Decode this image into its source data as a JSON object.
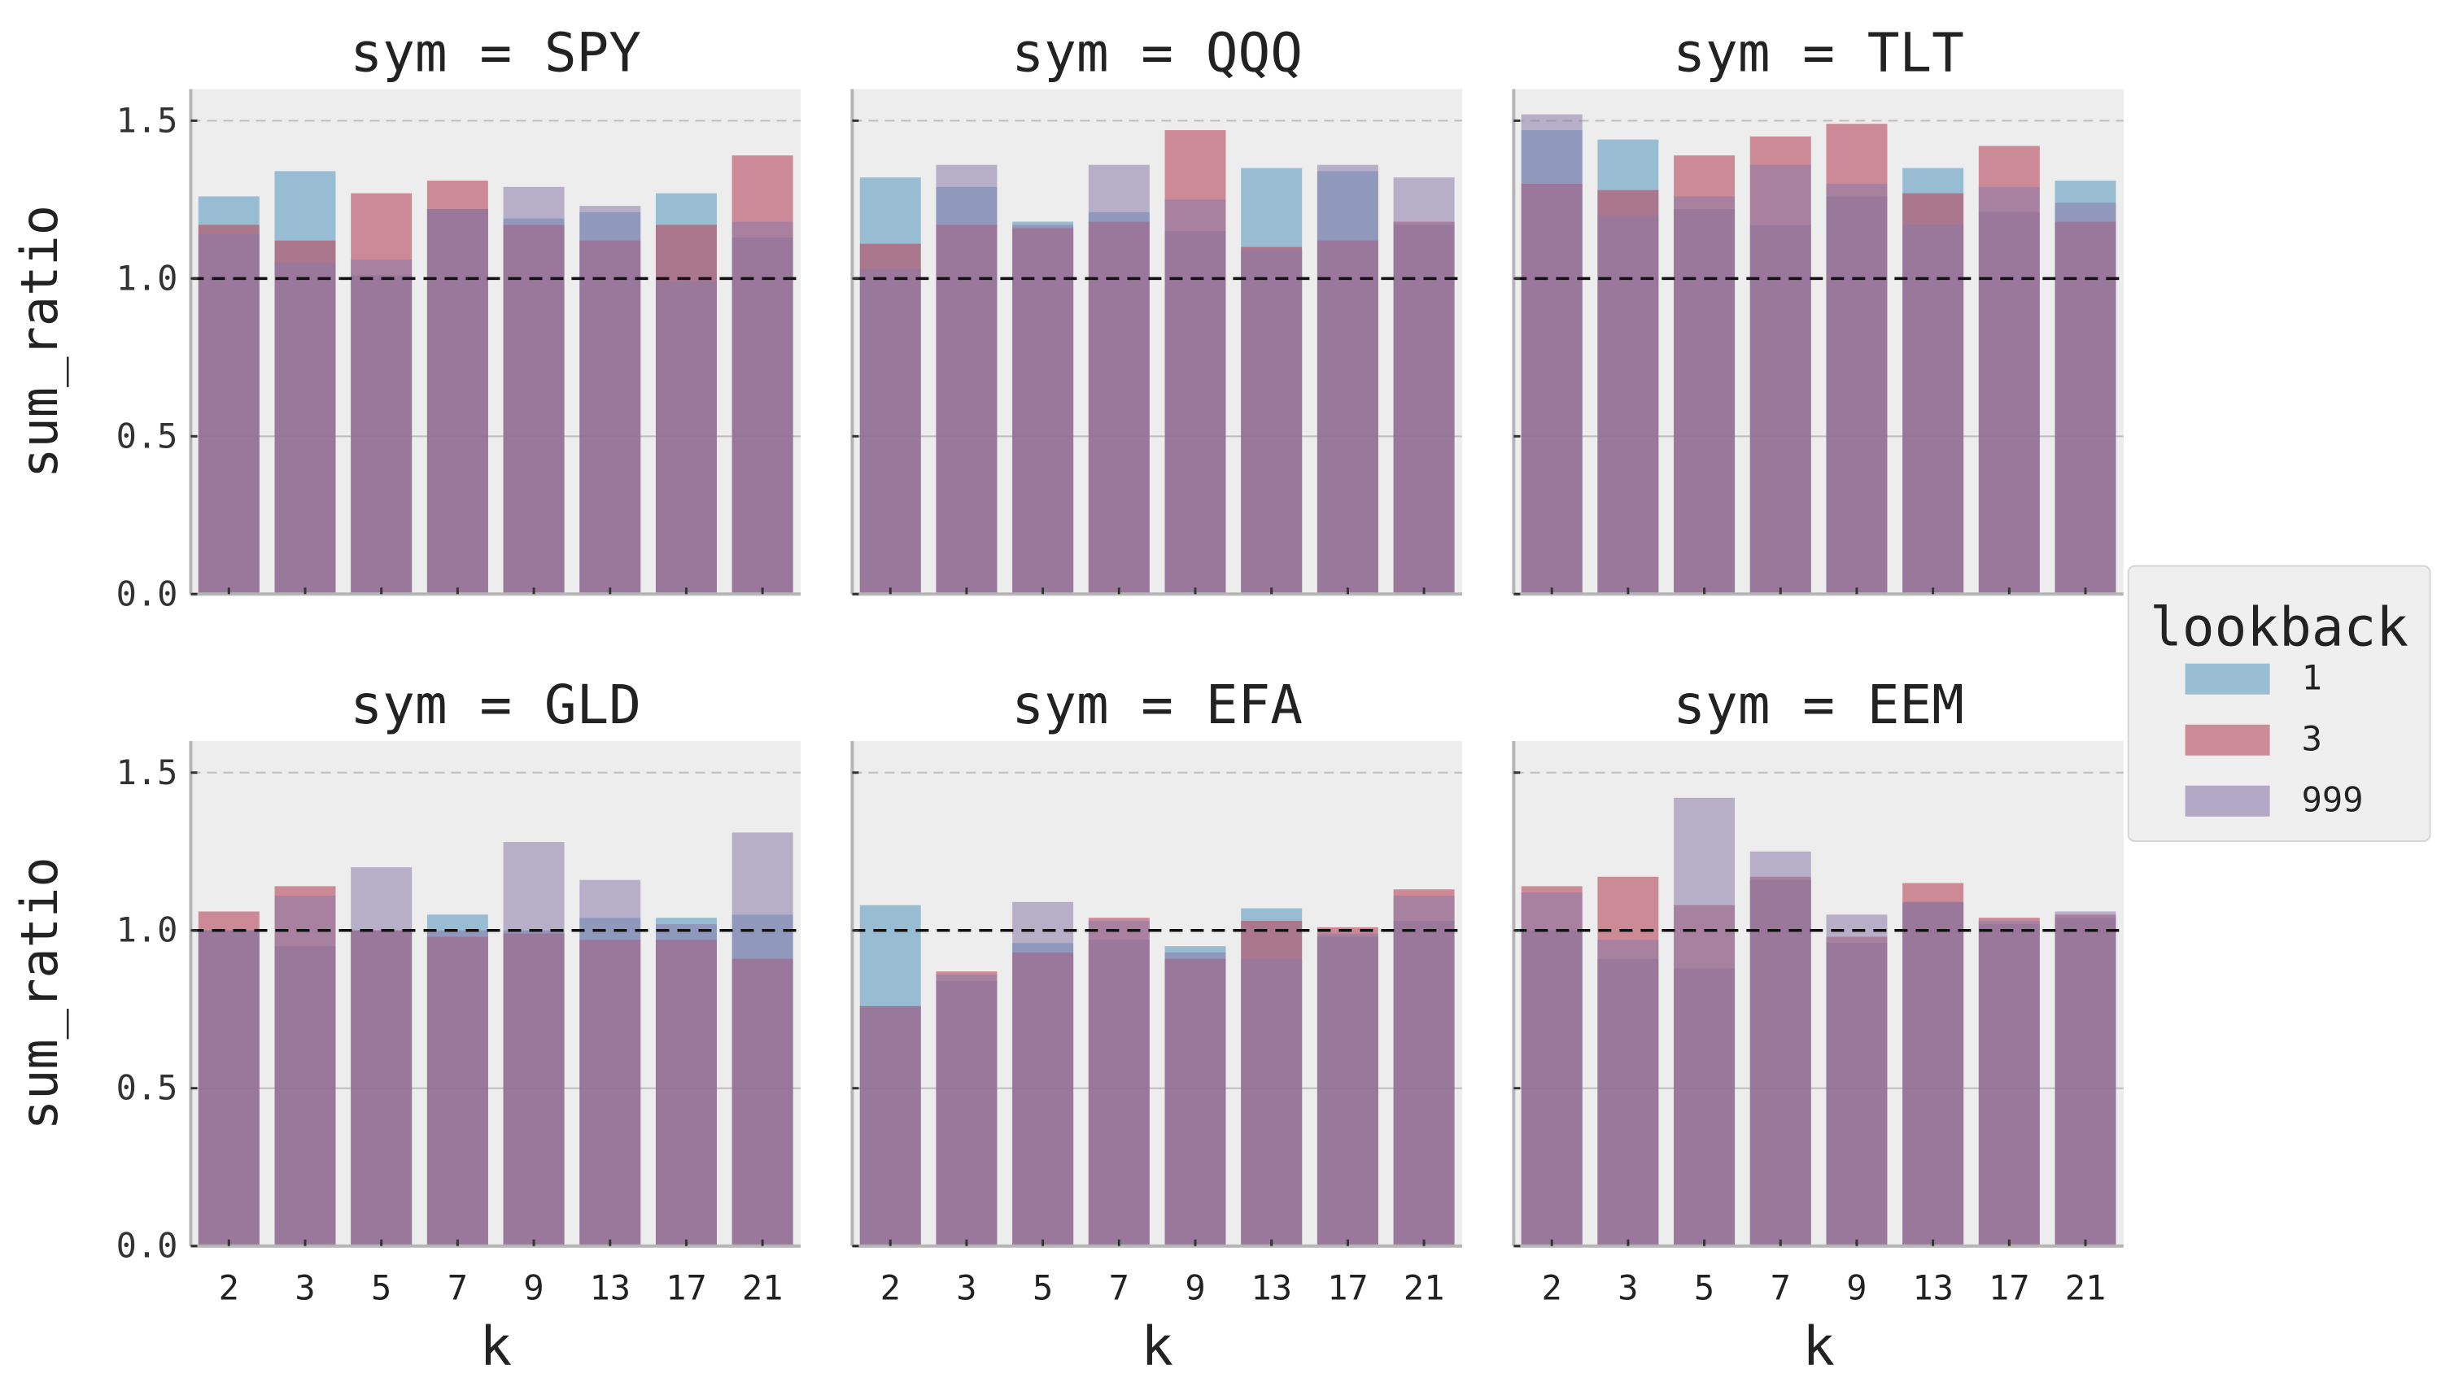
{
  "chart_data": {
    "type": "bar",
    "facet_variable": "sym",
    "facet_title_sep": " = ",
    "categories": [
      "2",
      "3",
      "5",
      "7",
      "9",
      "13",
      "17",
      "21"
    ],
    "xlabel": "k",
    "ylabel": "sum_ratio",
    "ylim": [
      0,
      1.6
    ],
    "yticks": [
      "0.0",
      "0.5",
      "1.0",
      "1.5"
    ],
    "reference_line": 1.0,
    "grid": true,
    "legend": {
      "title": "lookback",
      "placement": "right-center",
      "entries": [
        "1",
        "3",
        "999"
      ]
    },
    "series_colors": {
      "1": "#5f9dc0",
      "3": "#b5475e",
      "999": "#8a7aaa"
    },
    "panels": [
      {
        "sym": "SPY",
        "series": [
          {
            "name": "1",
            "values": [
              1.26,
              1.34,
              1.01,
              1.22,
              1.19,
              1.21,
              1.27,
              1.13
            ]
          },
          {
            "name": "3",
            "values": [
              1.17,
              1.12,
              1.27,
              1.31,
              1.17,
              1.12,
              1.17,
              1.39
            ]
          },
          {
            "name": "999",
            "values": [
              1.14,
              1.05,
              1.06,
              1.22,
              1.29,
              1.23,
              0.99,
              1.18
            ]
          }
        ]
      },
      {
        "sym": "QQQ",
        "series": [
          {
            "name": "1",
            "values": [
              1.32,
              1.29,
              1.18,
              1.21,
              1.15,
              1.35,
              1.34,
              1.17
            ]
          },
          {
            "name": "3",
            "values": [
              1.11,
              1.17,
              1.16,
              1.18,
              1.47,
              1.1,
              1.12,
              1.18
            ]
          },
          {
            "name": "999",
            "values": [
              1.03,
              1.36,
              1.17,
              1.36,
              1.25,
              1.09,
              1.36,
              1.32
            ]
          }
        ]
      },
      {
        "sym": "TLT",
        "series": [
          {
            "name": "1",
            "values": [
              1.47,
              1.44,
              1.22,
              1.17,
              1.26,
              1.35,
              1.21,
              1.31
            ]
          },
          {
            "name": "3",
            "values": [
              1.3,
              1.28,
              1.39,
              1.45,
              1.49,
              1.27,
              1.42,
              1.18
            ]
          },
          {
            "name": "999",
            "values": [
              1.52,
              1.2,
              1.26,
              1.36,
              1.3,
              1.17,
              1.29,
              1.24
            ]
          }
        ]
      },
      {
        "sym": "GLD",
        "series": [
          {
            "name": "1",
            "values": [
              1.0,
              0.95,
              1.0,
              1.05,
              1.0,
              1.04,
              1.04,
              1.05
            ]
          },
          {
            "name": "3",
            "values": [
              1.06,
              1.14,
              1.0,
              0.98,
              0.99,
              0.97,
              0.97,
              0.91
            ]
          },
          {
            "name": "999",
            "values": [
              1.0,
              1.11,
              1.2,
              1.0,
              1.28,
              1.16,
              1.02,
              1.31
            ]
          }
        ]
      },
      {
        "sym": "EFA",
        "series": [
          {
            "name": "1",
            "values": [
              1.08,
              0.84,
              0.96,
              0.97,
              0.95,
              1.07,
              0.98,
              1.03
            ]
          },
          {
            "name": "3",
            "values": [
              0.76,
              0.87,
              0.93,
              1.04,
              0.91,
              1.03,
              1.01,
              1.13
            ]
          },
          {
            "name": "999",
            "values": [
              0.76,
              0.86,
              1.09,
              1.03,
              0.93,
              0.91,
              0.99,
              1.11
            ]
          }
        ]
      },
      {
        "sym": "EEM",
        "series": [
          {
            "name": "1",
            "values": [
              1.0,
              0.91,
              0.88,
              1.16,
              0.96,
              1.09,
              1.02,
              1.04
            ]
          },
          {
            "name": "3",
            "values": [
              1.14,
              1.17,
              1.08,
              1.17,
              0.98,
              1.15,
              1.04,
              1.05
            ]
          },
          {
            "name": "999",
            "values": [
              1.12,
              0.97,
              1.42,
              1.25,
              1.05,
              1.09,
              1.03,
              1.06
            ]
          }
        ]
      }
    ]
  }
}
